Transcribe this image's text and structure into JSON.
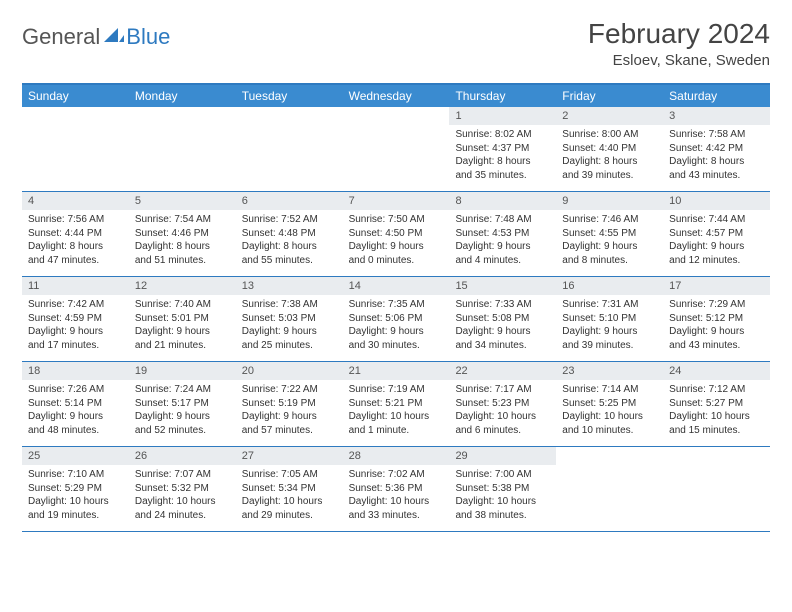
{
  "logo": {
    "general": "General",
    "blue": "Blue"
  },
  "header": {
    "month_title": "February 2024",
    "location": "Esloev, Skane, Sweden"
  },
  "colors": {
    "header_bar": "#3a8bd0",
    "accent_line": "#2e7ac0",
    "daynum_bg": "#e9ecef",
    "text": "#333333"
  },
  "days_of_week": [
    "Sunday",
    "Monday",
    "Tuesday",
    "Wednesday",
    "Thursday",
    "Friday",
    "Saturday"
  ],
  "weeks": [
    [
      {
        "empty": true
      },
      {
        "empty": true
      },
      {
        "empty": true
      },
      {
        "empty": true
      },
      {
        "num": "1",
        "sunrise": "Sunrise: 8:02 AM",
        "sunset": "Sunset: 4:37 PM",
        "daylight1": "Daylight: 8 hours",
        "daylight2": "and 35 minutes."
      },
      {
        "num": "2",
        "sunrise": "Sunrise: 8:00 AM",
        "sunset": "Sunset: 4:40 PM",
        "daylight1": "Daylight: 8 hours",
        "daylight2": "and 39 minutes."
      },
      {
        "num": "3",
        "sunrise": "Sunrise: 7:58 AM",
        "sunset": "Sunset: 4:42 PM",
        "daylight1": "Daylight: 8 hours",
        "daylight2": "and 43 minutes."
      }
    ],
    [
      {
        "num": "4",
        "sunrise": "Sunrise: 7:56 AM",
        "sunset": "Sunset: 4:44 PM",
        "daylight1": "Daylight: 8 hours",
        "daylight2": "and 47 minutes."
      },
      {
        "num": "5",
        "sunrise": "Sunrise: 7:54 AM",
        "sunset": "Sunset: 4:46 PM",
        "daylight1": "Daylight: 8 hours",
        "daylight2": "and 51 minutes."
      },
      {
        "num": "6",
        "sunrise": "Sunrise: 7:52 AM",
        "sunset": "Sunset: 4:48 PM",
        "daylight1": "Daylight: 8 hours",
        "daylight2": "and 55 minutes."
      },
      {
        "num": "7",
        "sunrise": "Sunrise: 7:50 AM",
        "sunset": "Sunset: 4:50 PM",
        "daylight1": "Daylight: 9 hours",
        "daylight2": "and 0 minutes."
      },
      {
        "num": "8",
        "sunrise": "Sunrise: 7:48 AM",
        "sunset": "Sunset: 4:53 PM",
        "daylight1": "Daylight: 9 hours",
        "daylight2": "and 4 minutes."
      },
      {
        "num": "9",
        "sunrise": "Sunrise: 7:46 AM",
        "sunset": "Sunset: 4:55 PM",
        "daylight1": "Daylight: 9 hours",
        "daylight2": "and 8 minutes."
      },
      {
        "num": "10",
        "sunrise": "Sunrise: 7:44 AM",
        "sunset": "Sunset: 4:57 PM",
        "daylight1": "Daylight: 9 hours",
        "daylight2": "and 12 minutes."
      }
    ],
    [
      {
        "num": "11",
        "sunrise": "Sunrise: 7:42 AM",
        "sunset": "Sunset: 4:59 PM",
        "daylight1": "Daylight: 9 hours",
        "daylight2": "and 17 minutes."
      },
      {
        "num": "12",
        "sunrise": "Sunrise: 7:40 AM",
        "sunset": "Sunset: 5:01 PM",
        "daylight1": "Daylight: 9 hours",
        "daylight2": "and 21 minutes."
      },
      {
        "num": "13",
        "sunrise": "Sunrise: 7:38 AM",
        "sunset": "Sunset: 5:03 PM",
        "daylight1": "Daylight: 9 hours",
        "daylight2": "and 25 minutes."
      },
      {
        "num": "14",
        "sunrise": "Sunrise: 7:35 AM",
        "sunset": "Sunset: 5:06 PM",
        "daylight1": "Daylight: 9 hours",
        "daylight2": "and 30 minutes."
      },
      {
        "num": "15",
        "sunrise": "Sunrise: 7:33 AM",
        "sunset": "Sunset: 5:08 PM",
        "daylight1": "Daylight: 9 hours",
        "daylight2": "and 34 minutes."
      },
      {
        "num": "16",
        "sunrise": "Sunrise: 7:31 AM",
        "sunset": "Sunset: 5:10 PM",
        "daylight1": "Daylight: 9 hours",
        "daylight2": "and 39 minutes."
      },
      {
        "num": "17",
        "sunrise": "Sunrise: 7:29 AM",
        "sunset": "Sunset: 5:12 PM",
        "daylight1": "Daylight: 9 hours",
        "daylight2": "and 43 minutes."
      }
    ],
    [
      {
        "num": "18",
        "sunrise": "Sunrise: 7:26 AM",
        "sunset": "Sunset: 5:14 PM",
        "daylight1": "Daylight: 9 hours",
        "daylight2": "and 48 minutes."
      },
      {
        "num": "19",
        "sunrise": "Sunrise: 7:24 AM",
        "sunset": "Sunset: 5:17 PM",
        "daylight1": "Daylight: 9 hours",
        "daylight2": "and 52 minutes."
      },
      {
        "num": "20",
        "sunrise": "Sunrise: 7:22 AM",
        "sunset": "Sunset: 5:19 PM",
        "daylight1": "Daylight: 9 hours",
        "daylight2": "and 57 minutes."
      },
      {
        "num": "21",
        "sunrise": "Sunrise: 7:19 AM",
        "sunset": "Sunset: 5:21 PM",
        "daylight1": "Daylight: 10 hours",
        "daylight2": "and 1 minute."
      },
      {
        "num": "22",
        "sunrise": "Sunrise: 7:17 AM",
        "sunset": "Sunset: 5:23 PM",
        "daylight1": "Daylight: 10 hours",
        "daylight2": "and 6 minutes."
      },
      {
        "num": "23",
        "sunrise": "Sunrise: 7:14 AM",
        "sunset": "Sunset: 5:25 PM",
        "daylight1": "Daylight: 10 hours",
        "daylight2": "and 10 minutes."
      },
      {
        "num": "24",
        "sunrise": "Sunrise: 7:12 AM",
        "sunset": "Sunset: 5:27 PM",
        "daylight1": "Daylight: 10 hours",
        "daylight2": "and 15 minutes."
      }
    ],
    [
      {
        "num": "25",
        "sunrise": "Sunrise: 7:10 AM",
        "sunset": "Sunset: 5:29 PM",
        "daylight1": "Daylight: 10 hours",
        "daylight2": "and 19 minutes."
      },
      {
        "num": "26",
        "sunrise": "Sunrise: 7:07 AM",
        "sunset": "Sunset: 5:32 PM",
        "daylight1": "Daylight: 10 hours",
        "daylight2": "and 24 minutes."
      },
      {
        "num": "27",
        "sunrise": "Sunrise: 7:05 AM",
        "sunset": "Sunset: 5:34 PM",
        "daylight1": "Daylight: 10 hours",
        "daylight2": "and 29 minutes."
      },
      {
        "num": "28",
        "sunrise": "Sunrise: 7:02 AM",
        "sunset": "Sunset: 5:36 PM",
        "daylight1": "Daylight: 10 hours",
        "daylight2": "and 33 minutes."
      },
      {
        "num": "29",
        "sunrise": "Sunrise: 7:00 AM",
        "sunset": "Sunset: 5:38 PM",
        "daylight1": "Daylight: 10 hours",
        "daylight2": "and 38 minutes."
      },
      {
        "empty": true
      },
      {
        "empty": true
      }
    ]
  ]
}
